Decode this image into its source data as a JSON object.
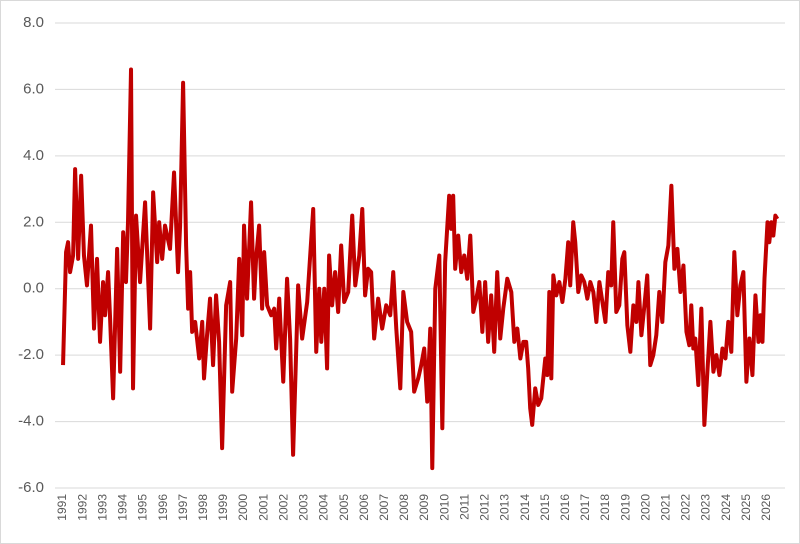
{
  "chart_data": {
    "type": "line",
    "x": [
      1991.0,
      1991.15,
      1991.25,
      1991.35,
      1991.5,
      1991.6,
      1991.75,
      1991.9,
      1992.04,
      1992.19,
      1992.39,
      1992.54,
      1992.69,
      1992.84,
      1992.99,
      1993.09,
      1993.24,
      1993.34,
      1993.49,
      1993.69,
      1993.84,
      1993.99,
      1994.13,
      1994.23,
      1994.38,
      1994.48,
      1994.63,
      1994.83,
      1995.08,
      1995.33,
      1995.48,
      1995.68,
      1995.78,
      1995.93,
      1996.07,
      1996.32,
      1996.52,
      1996.72,
      1996.82,
      1996.97,
      1997.12,
      1997.22,
      1997.32,
      1997.42,
      1997.57,
      1997.77,
      1997.92,
      1998.01,
      1998.16,
      1998.31,
      1998.46,
      1998.61,
      1998.76,
      1998.91,
      1999.11,
      1999.31,
      1999.41,
      1999.61,
      1999.76,
      1999.91,
      2000.0,
      2000.15,
      2000.35,
      2000.5,
      2000.6,
      2000.75,
      2000.9,
      2001.0,
      2001.15,
      2001.35,
      2001.5,
      2001.6,
      2001.75,
      2001.95,
      2002.14,
      2002.29,
      2002.44,
      2002.69,
      2002.89,
      2003.14,
      2003.44,
      2003.59,
      2003.74,
      2003.84,
      2003.99,
      2004.13,
      2004.23,
      2004.38,
      2004.53,
      2004.68,
      2004.83,
      2004.98,
      2005.18,
      2005.38,
      2005.53,
      2005.73,
      2005.88,
      2006.02,
      2006.17,
      2006.32,
      2006.47,
      2006.67,
      2006.87,
      2007.07,
      2007.27,
      2007.42,
      2007.57,
      2007.77,
      2007.92,
      2008.11,
      2008.31,
      2008.46,
      2008.66,
      2008.81,
      2008.96,
      2009.11,
      2009.26,
      2009.36,
      2009.51,
      2009.71,
      2009.86,
      2010.0,
      2010.2,
      2010.3,
      2010.4,
      2010.5,
      2010.65,
      2010.8,
      2010.95,
      2011.1,
      2011.25,
      2011.4,
      2011.55,
      2011.7,
      2011.85,
      2011.99,
      2012.14,
      2012.29,
      2012.44,
      2012.59,
      2012.74,
      2012.89,
      2013.09,
      2013.29,
      2013.44,
      2013.59,
      2013.74,
      2013.89,
      2014.03,
      2014.13,
      2014.23,
      2014.33,
      2014.48,
      2014.63,
      2014.78,
      2014.98,
      2015.08,
      2015.18,
      2015.28,
      2015.38,
      2015.53,
      2015.68,
      2015.83,
      2015.98,
      2016.12,
      2016.22,
      2016.37,
      2016.47,
      2016.62,
      2016.77,
      2016.92,
      2017.07,
      2017.22,
      2017.37,
      2017.52,
      2017.67,
      2017.82,
      2017.97,
      2018.11,
      2018.26,
      2018.36,
      2018.51,
      2018.66,
      2018.81,
      2018.91,
      2019.06,
      2019.21,
      2019.36,
      2019.51,
      2019.61,
      2019.76,
      2019.91,
      2020.05,
      2020.2,
      2020.35,
      2020.5,
      2020.65,
      2020.8,
      2020.95,
      2021.1,
      2021.25,
      2021.4,
      2021.55,
      2021.7,
      2021.85,
      2022.0,
      2022.14,
      2022.24,
      2022.34,
      2022.44,
      2022.59,
      2022.74,
      2022.89,
      2023.04,
      2023.19,
      2023.34,
      2023.49,
      2023.64,
      2023.79,
      2023.94,
      2024.08,
      2024.23,
      2024.38,
      2024.53,
      2024.68,
      2024.83,
      2024.98,
      2025.13,
      2025.28,
      2025.43,
      2025.58,
      2025.68,
      2025.78,
      2025.88,
      2026.03,
      2026.12,
      2026.22,
      2026.32,
      2026.42,
      2026.52
    ],
    "series": [
      {
        "color": "#c00000",
        "values": [
          -2.3,
          1.1,
          1.4,
          0.5,
          1.0,
          3.6,
          0.9,
          3.4,
          1.0,
          0.1,
          1.9,
          -1.2,
          0.9,
          -1.6,
          0.2,
          -0.8,
          0.5,
          -0.9,
          -3.3,
          1.2,
          -2.5,
          1.7,
          0.2,
          2.0,
          6.6,
          -3.0,
          2.2,
          0.2,
          2.6,
          -1.2,
          2.9,
          0.8,
          2.0,
          0.9,
          1.9,
          1.2,
          3.5,
          0.5,
          1.9,
          6.2,
          1.3,
          -0.6,
          0.5,
          -1.3,
          -1.0,
          -2.1,
          -1.0,
          -2.7,
          -1.4,
          -0.3,
          -2.3,
          -0.2,
          -1.6,
          -4.8,
          -0.5,
          0.2,
          -3.1,
          -1.5,
          0.9,
          -1.4,
          1.9,
          -0.3,
          2.6,
          -0.3,
          0.9,
          1.9,
          -0.6,
          1.1,
          -0.5,
          -0.8,
          -0.6,
          -1.8,
          -0.3,
          -2.8,
          0.3,
          -1.5,
          -5.0,
          0.1,
          -1.5,
          -0.4,
          2.4,
          -1.9,
          0.0,
          -1.6,
          0.0,
          -2.4,
          1.0,
          -0.5,
          0.5,
          -0.7,
          1.3,
          -0.4,
          -0.1,
          2.2,
          0.1,
          1.0,
          2.4,
          -0.2,
          0.6,
          0.5,
          -1.5,
          -0.3,
          -1.2,
          -0.5,
          -0.8,
          0.5,
          -1.2,
          -3.0,
          -0.1,
          -1.0,
          -1.3,
          -3.1,
          -2.7,
          -2.3,
          -1.8,
          -3.4,
          -1.2,
          -5.4,
          0.0,
          1.0,
          -4.2,
          0.8,
          2.8,
          1.8,
          2.8,
          0.6,
          1.6,
          0.5,
          1.0,
          0.3,
          1.6,
          -0.7,
          -0.3,
          0.2,
          -1.3,
          0.2,
          -1.6,
          -0.2,
          -1.9,
          0.5,
          -1.5,
          -0.6,
          0.3,
          -0.1,
          -1.6,
          -1.2,
          -2.1,
          -1.6,
          -1.6,
          -2.4,
          -3.6,
          -4.1,
          -3.0,
          -3.5,
          -3.3,
          -2.1,
          -2.6,
          -0.1,
          -2.7,
          0.4,
          -0.2,
          0.2,
          -0.4,
          0.3,
          1.4,
          0.1,
          2.0,
          1.4,
          -0.1,
          0.4,
          0.2,
          -0.3,
          0.2,
          -0.1,
          -1.0,
          0.2,
          -0.4,
          -1.0,
          0.5,
          0.1,
          2.0,
          -0.7,
          -0.5,
          0.9,
          1.1,
          -1.1,
          -1.9,
          -0.5,
          -1.0,
          0.2,
          -1.4,
          -0.5,
          0.4,
          -2.3,
          -2.0,
          -1.4,
          -0.1,
          -1.0,
          0.8,
          1.3,
          3.1,
          0.6,
          1.2,
          -0.1,
          0.7,
          -1.3,
          -1.7,
          -0.5,
          -1.8,
          -1.5,
          -2.9,
          -0.6,
          -4.1,
          -2.5,
          -1.0,
          -2.5,
          -2.0,
          -2.6,
          -1.8,
          -2.1,
          -1.0,
          -1.9,
          1.1,
          -0.8,
          0.1,
          0.5,
          -2.8,
          -1.5,
          -2.6,
          -0.2,
          -1.6,
          -0.8,
          -1.6,
          0.3,
          2.0,
          1.4,
          2.0,
          1.6,
          2.2,
          2.1
        ]
      }
    ],
    "xlim": [
      1990.6,
      2026.9
    ],
    "xticks": [
      1991,
      1992,
      1993,
      1994,
      1995,
      1996,
      1997,
      1998,
      1999,
      2000,
      2001,
      2002,
      2003,
      2004,
      2005,
      2006,
      2007,
      2008,
      2009,
      2010,
      2011,
      2012,
      2013,
      2014,
      2015,
      2016,
      2017,
      2018,
      2019,
      2020,
      2021,
      2022,
      2023,
      2024,
      2025,
      2026
    ],
    "ylim": [
      -6,
      8
    ],
    "yticks": [
      {
        "value": -6,
        "label": "-6.0"
      },
      {
        "value": -4,
        "label": "-4.0"
      },
      {
        "value": -2,
        "label": "-2.0"
      },
      {
        "value": 0,
        "label": "0.0"
      },
      {
        "value": 2,
        "label": "2.0"
      },
      {
        "value": 4,
        "label": "4.0"
      },
      {
        "value": 6,
        "label": "6.0"
      },
      {
        "value": 8,
        "label": "8.0"
      }
    ],
    "grid": true
  }
}
